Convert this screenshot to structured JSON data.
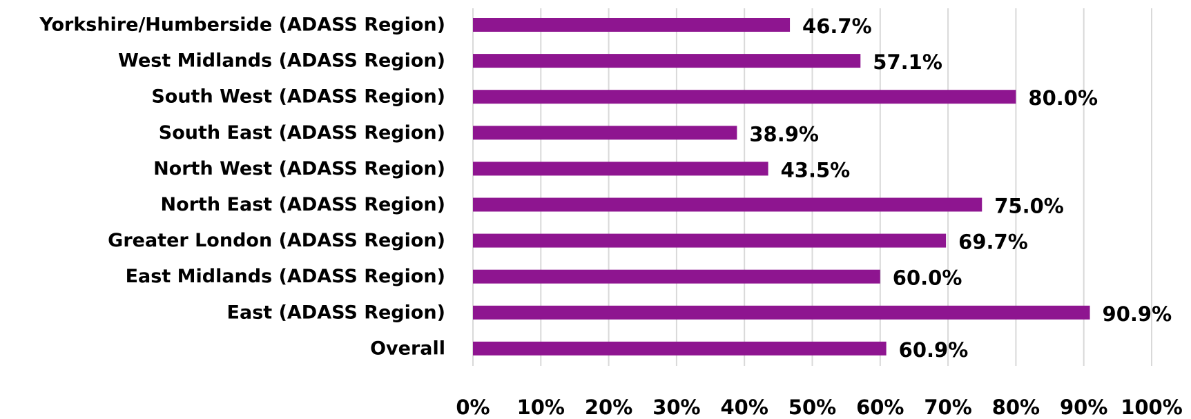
{
  "colors": {
    "bar": "#8e1590",
    "grid": "#d9d9d9",
    "text": "#000000",
    "background": "#ffffff"
  },
  "chart_data": {
    "type": "bar",
    "orientation": "horizontal",
    "title": "",
    "xlabel": "",
    "ylabel": "",
    "categories": [
      "Yorkshire/Humberside (ADASS Region)",
      "West Midlands (ADASS Region)",
      "South West (ADASS Region)",
      "South East (ADASS Region)",
      "North West (ADASS Region)",
      "North East (ADASS Region)",
      "Greater London (ADASS Region)",
      "East Midlands (ADASS Region)",
      "East (ADASS Region)",
      "Overall"
    ],
    "values": [
      46.7,
      57.1,
      80.0,
      38.9,
      43.5,
      75.0,
      69.7,
      60.0,
      90.9,
      60.9
    ],
    "value_labels": [
      "46.7%",
      "57.1%",
      "80.0%",
      "38.9%",
      "43.5%",
      "75.0%",
      "69.7%",
      "60.0%",
      "90.9%",
      "60.9%"
    ],
    "xlim": [
      0,
      100
    ],
    "x_ticks": [
      "0%",
      "10%",
      "20%",
      "30%",
      "40%",
      "50%",
      "60%",
      "70%",
      "80%",
      "90%",
      "100%"
    ],
    "grid": "vertical",
    "legend": "none"
  }
}
